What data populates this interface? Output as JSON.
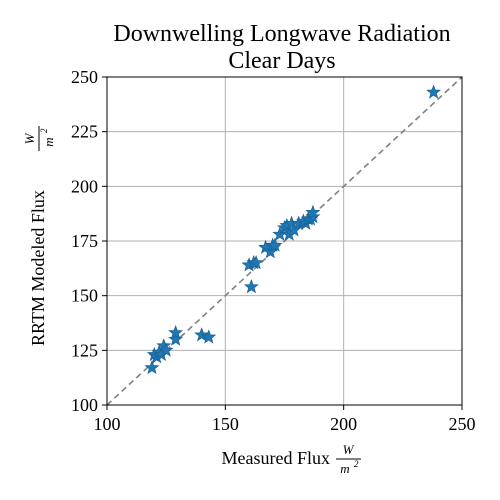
{
  "chart_data": {
    "type": "scatter",
    "title": [
      "Downwelling Longwave Radiation",
      "Clear Days"
    ],
    "xlabel": "Measured Flux",
    "ylabel": "RRTM Modeled Flux",
    "unit_numerator": "W",
    "unit_denominator": "m",
    "unit_exponent": "2",
    "xlim": [
      100,
      250
    ],
    "ylim": [
      100,
      250
    ],
    "xticks": [
      100,
      150,
      200,
      250
    ],
    "yticks": [
      100,
      125,
      150,
      175,
      200,
      225,
      250
    ],
    "grid": true,
    "marker": "star",
    "color": "#1f77b4",
    "reference_line": "y = x",
    "x": [
      119,
      120,
      121,
      122,
      123,
      124,
      125,
      129,
      129,
      140,
      143,
      160,
      161,
      162,
      163,
      167,
      169,
      170,
      171,
      173,
      175,
      176,
      177,
      178,
      179,
      181,
      183,
      184,
      185,
      186,
      187,
      187,
      238
    ],
    "y": [
      117,
      123,
      122,
      124,
      123,
      127,
      125,
      130,
      133,
      132,
      131,
      164,
      154,
      165,
      165,
      172,
      170,
      173,
      173,
      178,
      181,
      182,
      178,
      183,
      180,
      183,
      184,
      183,
      185,
      185,
      186,
      188,
      243
    ]
  }
}
